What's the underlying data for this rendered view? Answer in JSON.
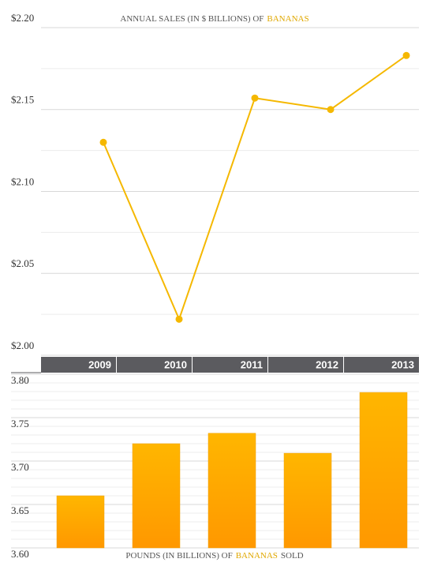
{
  "chart_data": [
    {
      "type": "line",
      "title": [
        {
          "text": "ANNUAL SALES (IN $ BILLIONS) OF",
          "color": "#555555"
        },
        {
          "text": "BANANAS",
          "color": "#e0a800"
        }
      ],
      "categories": [
        "2009",
        "2010",
        "2011",
        "2012",
        "2013"
      ],
      "values": [
        2.13,
        2.022,
        2.157,
        2.15,
        2.183
      ],
      "color": "#f5b800",
      "ylim": [
        2.0,
        2.2
      ],
      "yticks": [
        {
          "value": 2.0,
          "label": "$2.00"
        },
        {
          "value": 2.05,
          "label": "$2.05"
        },
        {
          "value": 2.1,
          "label": "$2.10"
        },
        {
          "value": 2.15,
          "label": "$2.15"
        },
        {
          "value": 2.2,
          "label": "$2.20"
        }
      ],
      "minor_yticks": [
        2.025,
        2.075,
        2.125,
        2.175
      ],
      "grid": true
    },
    {
      "type": "bar",
      "title": [
        {
          "text": "POUNDS (IN BILLIONS) OF",
          "color": "#555555"
        },
        {
          "text": "BANANAS",
          "color": "#e0a800"
        },
        {
          "text": "SOLD",
          "color": "#555555"
        }
      ],
      "values": [
        3.66,
        3.72,
        3.732,
        3.709,
        3.779
      ],
      "color": [
        "#ffb600",
        "#ff9800"
      ],
      "ylim": [
        3.6,
        3.8
      ],
      "yticks": [
        {
          "value": 3.6,
          "label": "3.60"
        },
        3.65,
        {
          "value": 3.7,
          "label": "3.70"
        },
        3.75,
        {
          "value": 3.8,
          "label": "3.80"
        }
      ],
      "minor_yticks": [
        3.61,
        3.62,
        3.63,
        3.64,
        3.66,
        3.67,
        3.68,
        3.69,
        3.71,
        3.72,
        3.73,
        3.74,
        3.76,
        3.77,
        3.78,
        3.79
      ],
      "grid": true
    }
  ]
}
